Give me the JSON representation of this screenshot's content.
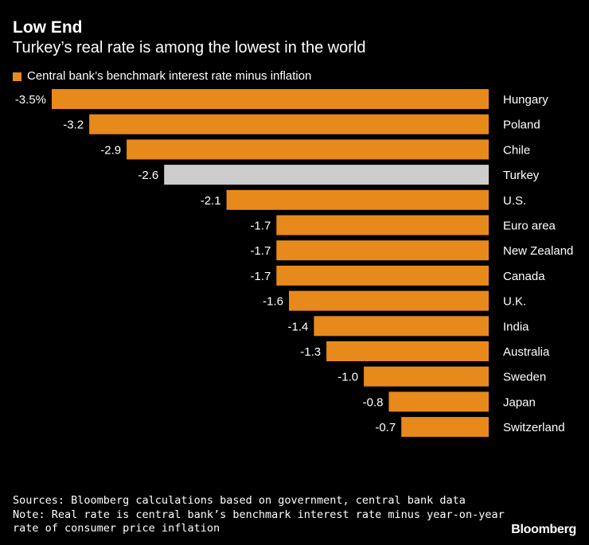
{
  "header": {
    "title": "Low End",
    "subtitle": "Turkey’s real rate is among the lowest in the world",
    "legend_label": "Central bank’s benchmark interest rate minus inflation"
  },
  "colors": {
    "bar": "#E8891C",
    "highlight": "#CDCDCD",
    "background": "#000000",
    "text": "#FFFFFF"
  },
  "chart_data": {
    "type": "bar",
    "orientation": "horizontal",
    "title": "Low End",
    "subtitle": "Turkey’s real rate is among the lowest in the world",
    "series": [
      {
        "name": "Central bank’s benchmark interest rate minus inflation",
        "values": [
          -3.5,
          -3.2,
          -2.9,
          -2.6,
          -2.1,
          -1.7,
          -1.7,
          -1.7,
          -1.6,
          -1.4,
          -1.3,
          -1.0,
          -0.8,
          -0.7
        ]
      }
    ],
    "categories": [
      "Hungary",
      "Poland",
      "Chile",
      "Turkey",
      "U.S.",
      "Euro area",
      "New Zealand",
      "Canada",
      "U.K.",
      "India",
      "Australia",
      "Sweden",
      "Japan",
      "Switzerland"
    ],
    "labels": [
      "-3.5%",
      "-3.2",
      "-2.9",
      "-2.6",
      "-2.1",
      "-1.7",
      "-1.7",
      "-1.7",
      "-1.6",
      "-1.4",
      "-1.3",
      "-1.0",
      "-0.8",
      "-0.7"
    ],
    "highlight": "Turkey",
    "xlim": [
      -3.5,
      0
    ],
    "legend": "top-left",
    "grid": false
  },
  "footer": {
    "sources": "Sources: Bloomberg calculations based on government, central bank data",
    "note_line1": "Note: Real rate is central bank’s benchmark interest rate minus year-on-year",
    "note_line2": "rate of consumer price inflation"
  },
  "brand": "Bloomberg"
}
